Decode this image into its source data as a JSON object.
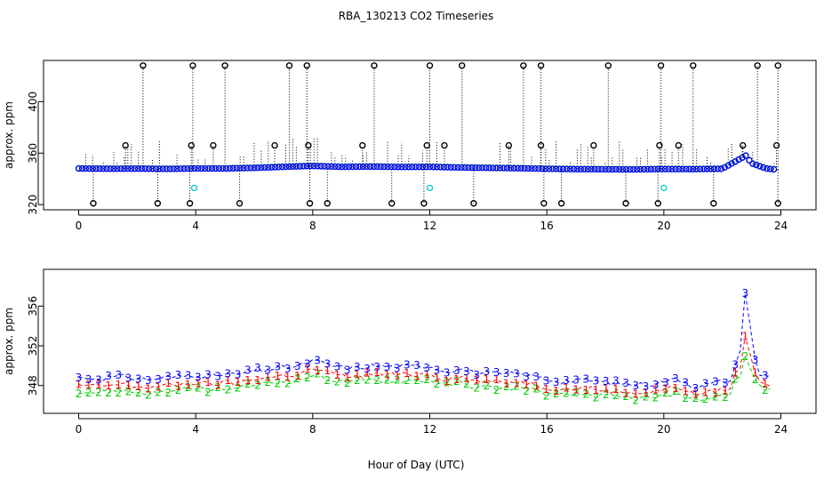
{
  "title": "RBA_130213  CO2 Timeseries",
  "xlabel": "Hour of Day (UTC)",
  "chart_data": [
    {
      "type": "scatter",
      "ylabel": "approx. ppm",
      "xlim": [
        -1.2,
        25.2
      ],
      "ylim": [
        316,
        432
      ],
      "xticks": [
        "0",
        "4",
        "8",
        "12",
        "16",
        "20",
        "24"
      ],
      "yticks": [
        "320",
        "360",
        "400"
      ],
      "baseline": [
        [
          0,
          348
        ],
        [
          1,
          347.8
        ],
        [
          2,
          347.9
        ],
        [
          3,
          347.7
        ],
        [
          4,
          348
        ],
        [
          5,
          348
        ],
        [
          6,
          348.5
        ],
        [
          7,
          349.3
        ],
        [
          8,
          350
        ],
        [
          9,
          349.3
        ],
        [
          10,
          349.5
        ],
        [
          11,
          349.2
        ],
        [
          12,
          349.3
        ],
        [
          13,
          348.8
        ],
        [
          14,
          348.5
        ],
        [
          15,
          348.2
        ],
        [
          16,
          347.8
        ],
        [
          17,
          347.5
        ],
        [
          18,
          347.4
        ],
        [
          19,
          347.3
        ],
        [
          20,
          347.6
        ],
        [
          21,
          347.5
        ],
        [
          22,
          347.8
        ],
        [
          22.8,
          358
        ],
        [
          23,
          352
        ],
        [
          23.5,
          348
        ],
        [
          23.9,
          347
        ]
      ],
      "high_outliers": [
        2.2,
        3.9,
        5.0,
        7.2,
        7.8,
        10.1,
        12.0,
        13.1,
        15.2,
        15.8,
        18.1,
        19.9,
        21.0,
        23.2,
        23.9
      ],
      "mid_outliers": [
        1.6,
        3.85,
        4.6,
        6.7,
        7.85,
        9.7,
        11.9,
        12.5,
        14.7,
        15.8,
        17.6,
        19.85,
        20.5,
        22.7,
        23.85
      ],
      "low_outliers": [
        0.5,
        2.7,
        3.8,
        5.5,
        7.9,
        8.5,
        10.7,
        11.8,
        13.5,
        15.9,
        16.5,
        18.7,
        19.8,
        21.7,
        23.9
      ],
      "cyan_points": [
        [
          3.95,
          333
        ],
        [
          12.0,
          333
        ],
        [
          20.0,
          333
        ]
      ]
    },
    {
      "type": "line",
      "ylabel": "approx. ppm",
      "xlim": [
        -1.2,
        25.2
      ],
      "ylim": [
        345.2,
        359.7
      ],
      "xticks": [
        "0",
        "4",
        "8",
        "12",
        "16",
        "20",
        "24"
      ],
      "yticks": [
        "348",
        "352",
        "356"
      ],
      "series": [
        {
          "name": "3",
          "color": "#0000ff",
          "offset": 0.5
        },
        {
          "name": "1",
          "color": "#ff0000",
          "offset": -0.3
        },
        {
          "name": "2",
          "color": "#00cc00",
          "offset": -0.9
        }
      ],
      "x": [
        0,
        0.5,
        1,
        1.5,
        2,
        2.5,
        3,
        3.5,
        4,
        4.5,
        5,
        5.5,
        6,
        6.5,
        7,
        7.5,
        8,
        8.5,
        9,
        9.5,
        10,
        10.5,
        11,
        11.5,
        12,
        12.5,
        13,
        13.5,
        14,
        14.5,
        15,
        15.5,
        16,
        16.5,
        17,
        17.5,
        18,
        18.5,
        19,
        19.5,
        20,
        20.5,
        21,
        21.5,
        22,
        22.3,
        22.6,
        22.8,
        23.0,
        23.2,
        23.5,
        23.8
      ],
      "y": [
        348.3,
        348.2,
        348.3,
        348.4,
        348.2,
        348.1,
        348.3,
        348.4,
        348.6,
        348.4,
        348.6,
        348.6,
        349.0,
        349.1,
        349.3,
        349.4,
        350.0,
        349.6,
        349.3,
        349.2,
        349.5,
        349.4,
        349.4,
        349.4,
        349.5,
        348.9,
        349.2,
        348.8,
        348.7,
        348.6,
        348.7,
        348.5,
        348.1,
        347.9,
        348.0,
        348.0,
        347.8,
        347.7,
        347.6,
        347.6,
        347.9,
        348.2,
        347.4,
        347.6,
        347.9,
        348.0,
        351.0,
        357.8,
        352.6,
        349.0,
        348.5,
        348.2
      ]
    }
  ]
}
